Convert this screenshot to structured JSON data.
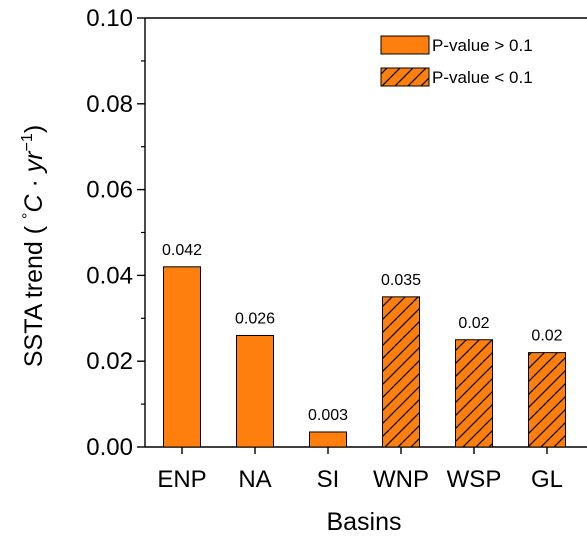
{
  "chart_data": {
    "type": "bar",
    "categories": [
      "ENP",
      "NA",
      "SI",
      "WNP",
      "WSP",
      "GL"
    ],
    "values": [
      0.042,
      0.026,
      0.0035,
      0.035,
      0.025,
      0.022
    ],
    "value_labels": [
      "0.042",
      "0.026",
      "0.003",
      "0.035",
      "0.02",
      "0.02"
    ],
    "hatched": [
      false,
      false,
      false,
      true,
      true,
      true
    ],
    "xlabel": "Basins",
    "ylabel": {
      "prefix": "SSTA trend ( ",
      "degree": "°",
      "unit_c": "C",
      "dot": " · ",
      "unit_yr": "yr",
      "exponent": "−1",
      "suffix": ")"
    },
    "ylim": [
      0.0,
      0.1
    ],
    "yticks": [
      "0.00",
      "0.02",
      "0.04",
      "0.06",
      "0.08",
      "0.10"
    ],
    "ytick_values": [
      0.0,
      0.02,
      0.04,
      0.06,
      0.08,
      0.1
    ],
    "y_minor_step": 0.01,
    "grid": false,
    "legend": {
      "placement": "top-right",
      "entries": [
        {
          "label": "P-value > 0.1",
          "hatched": false
        },
        {
          "label": "P-value < 0.1",
          "hatched": true
        }
      ]
    },
    "colors": {
      "bar_fill": "#ff7f0e",
      "bar_edge": "#000000",
      "axis": "#000000"
    }
  }
}
